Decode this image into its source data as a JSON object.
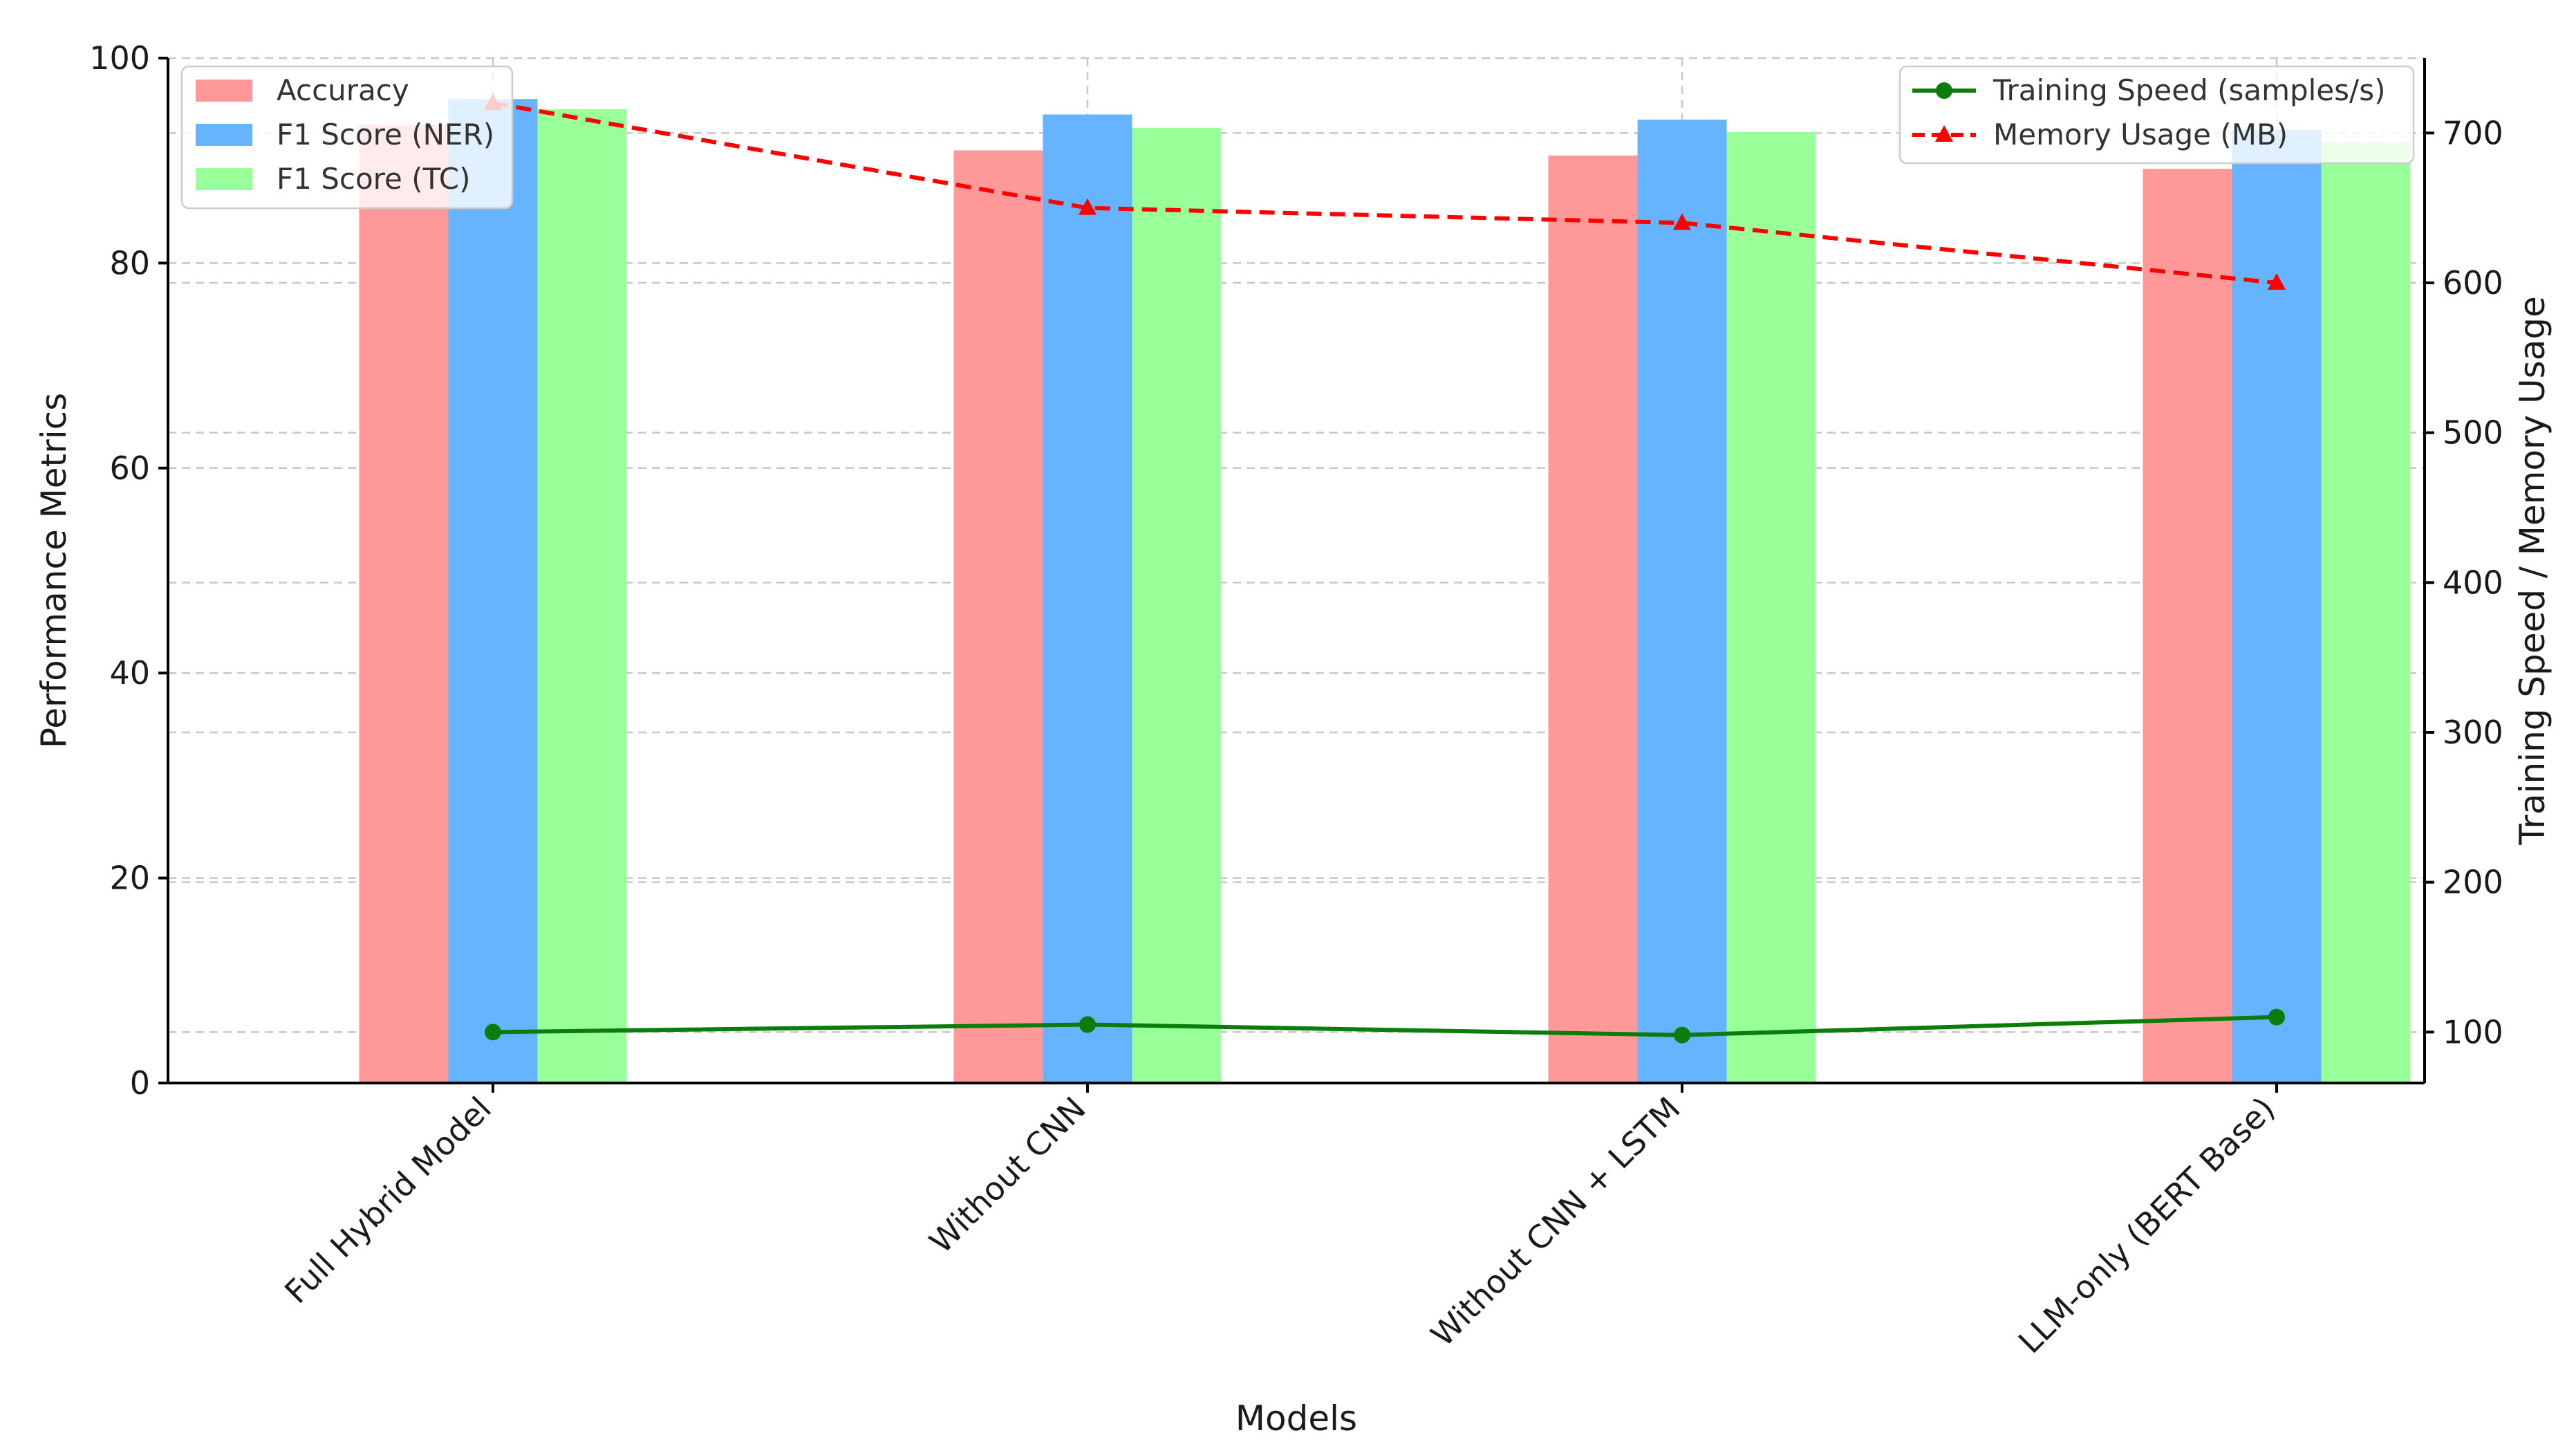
{
  "chart_data": {
    "type": "bar",
    "categories": [
      "Full Hybrid Model",
      "Without CNN",
      "Without CNN + LSTM",
      "LLM-only (BERT Base)"
    ],
    "xlabel": "Models",
    "ylabel_left": "Performance Metrics",
    "ylabel_right": "Training Speed / Memory Usage",
    "ylim_left": [
      0,
      100
    ],
    "ylim_right": [
      66,
      750
    ],
    "yticks_left": [
      0,
      20,
      40,
      60,
      80,
      100
    ],
    "yticks_right": [
      100,
      200,
      300,
      400,
      500,
      600,
      700
    ],
    "grid": true,
    "bar_series": [
      {
        "name": "Accuracy",
        "color": "#ff9999",
        "values": [
          93.5,
          91.0,
          90.5,
          89.2
        ]
      },
      {
        "name": "F1 Score (NER)",
        "color": "#66b3ff",
        "values": [
          96.0,
          94.5,
          94.0,
          93.0
        ]
      },
      {
        "name": "F1 Score (TC)",
        "color": "#99ff99",
        "values": [
          95.0,
          93.2,
          92.8,
          91.8
        ]
      }
    ],
    "line_series": [
      {
        "name": "Training Speed (samples/s)",
        "color": "#0a7d0a",
        "marker": "circle",
        "dashed": false,
        "values": [
          100,
          105,
          98,
          110
        ]
      },
      {
        "name": "Memory Usage (MB)",
        "color": "#ff0000",
        "marker": "triangle",
        "dashed": true,
        "values": [
          720,
          650,
          640,
          600
        ]
      }
    ],
    "legend_left_position": "upper-left",
    "legend_right_position": "upper-right"
  }
}
